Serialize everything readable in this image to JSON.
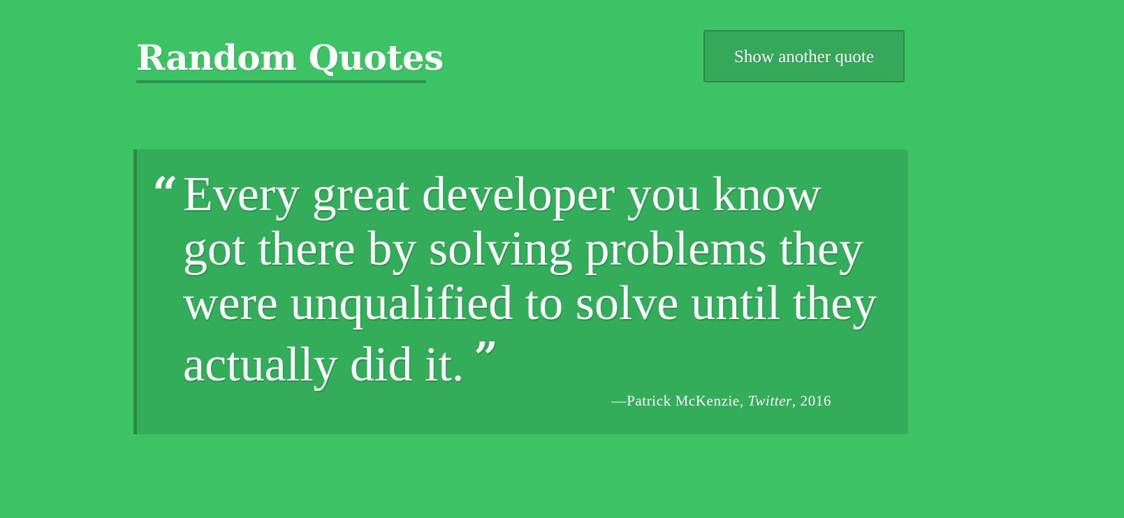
{
  "colors": {
    "background": "#3cc363",
    "card": "#33ad59",
    "border": "#2a8a45",
    "button": "#36a85a",
    "underline": "#2f8f4c"
  },
  "header": {
    "title": "Random Quotes",
    "button_label": "Show another quote"
  },
  "quote": {
    "open_mark": "“",
    "text": "Every great developer you know got there by solving problems they were unqualified to solve until they actually did it.",
    "close_mark": "”",
    "author": "—Patrick McKenzie, ",
    "source": "Twitter",
    "year": ", 2016"
  }
}
